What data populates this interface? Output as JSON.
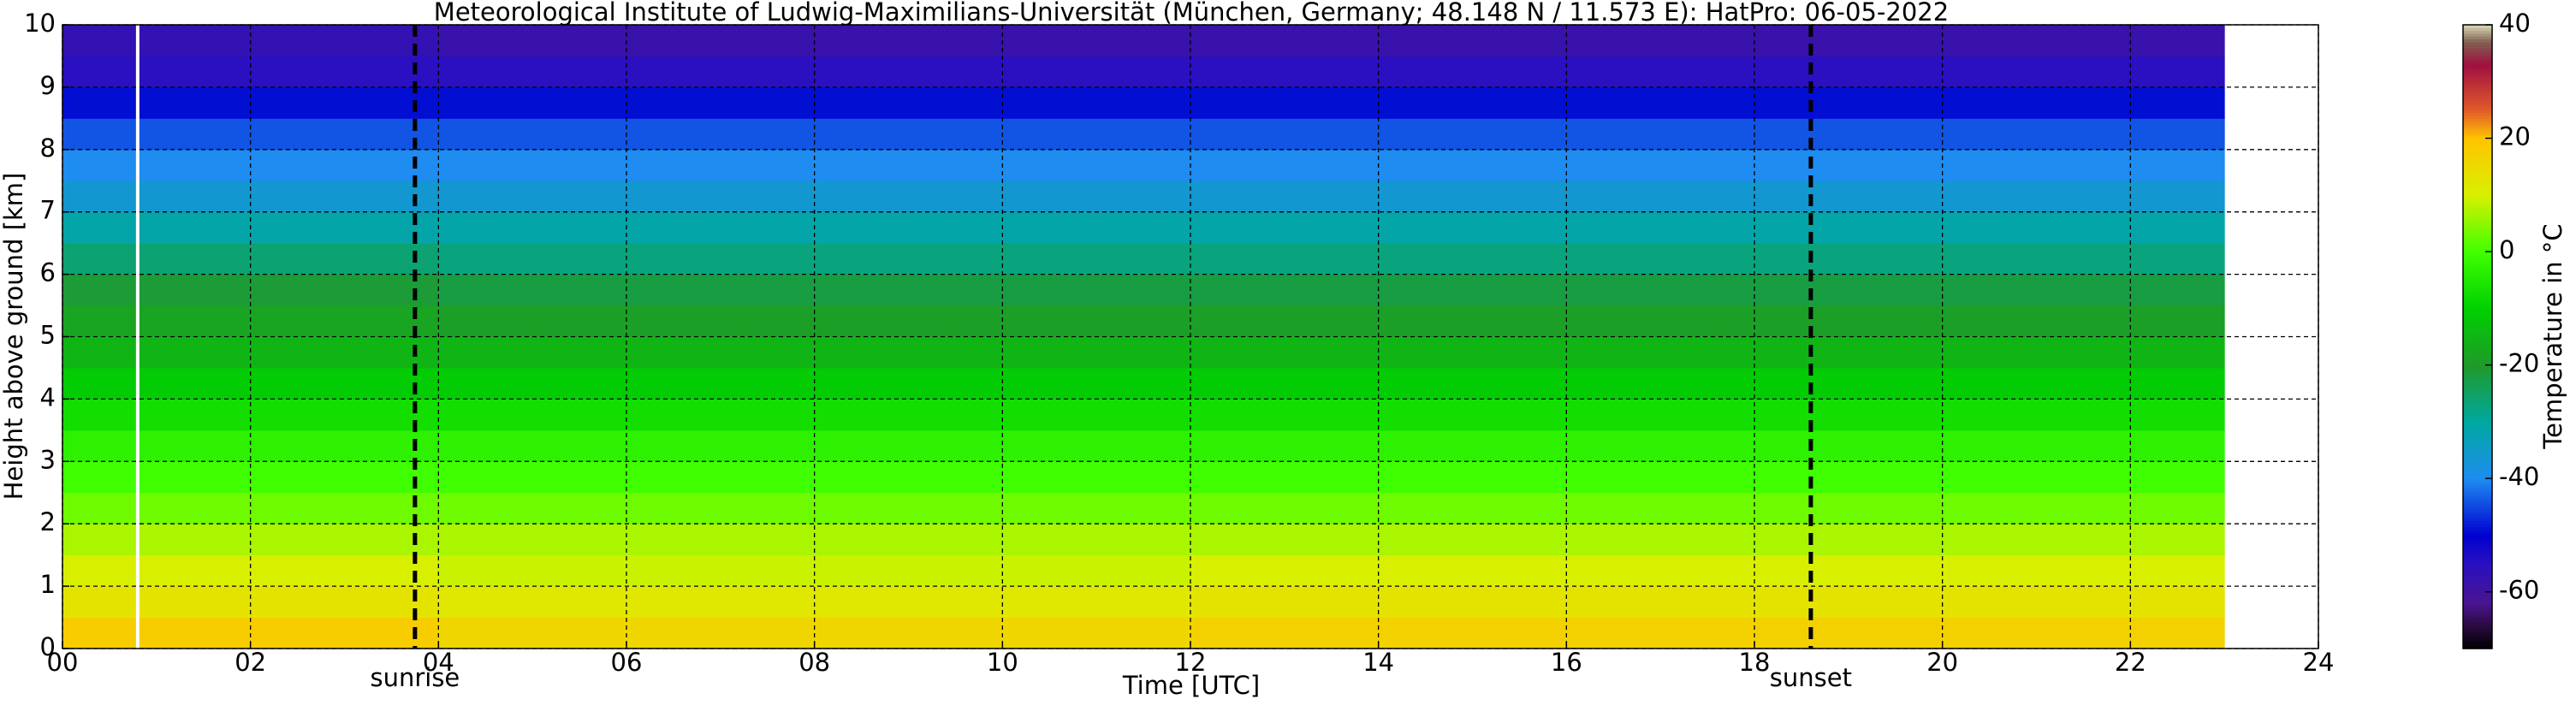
{
  "chart_data": {
    "type": "heatmap",
    "title": "Meteorological Institute of Ludwig-Maximilians-Universität (München, Germany; 48.148 N / 11.573 E):    HatPro: 06-05-2022",
    "x_label": "Time [UTC]",
    "y_label": "Height above ground [km]",
    "colorbar_label": "Temperature in °C",
    "x": [
      0,
      4,
      8,
      12,
      16,
      20,
      23
    ],
    "y": [
      0,
      0.5,
      1,
      1.5,
      2,
      2.5,
      3,
      3.5,
      4,
      4.5,
      5,
      5.5,
      6,
      6.5,
      7,
      7.5,
      8,
      8.5,
      9,
      9.5,
      10
    ],
    "values": [
      [
        18,
        16,
        16,
        17,
        17,
        17
      ],
      [
        13,
        12,
        12,
        13,
        13,
        13
      ],
      [
        10,
        9,
        9,
        10,
        10,
        10
      ],
      [
        7,
        7,
        7,
        7,
        7,
        7
      ],
      [
        3,
        3,
        3,
        3,
        3,
        3
      ],
      [
        0,
        0,
        0,
        0,
        0,
        0
      ],
      [
        -3,
        -3,
        -3,
        -3,
        -3,
        -3
      ],
      [
        -7,
        -7,
        -7,
        -7,
        -7,
        -7
      ],
      [
        -11,
        -11,
        -11,
        -11,
        -11,
        -11
      ],
      [
        -15,
        -15,
        -15,
        -15,
        -15,
        -15
      ],
      [
        -18,
        -19,
        -19,
        -19,
        -19,
        -19
      ],
      [
        -21,
        -22,
        -22,
        -22,
        -22,
        -22
      ],
      [
        -26,
        -27,
        -27,
        -27,
        -27,
        -27
      ],
      [
        -31,
        -31,
        -31,
        -31,
        -31,
        -31
      ],
      [
        -36,
        -36,
        -36,
        -36,
        -36,
        -36
      ],
      [
        -40,
        -40,
        -40,
        -40,
        -40,
        -40
      ],
      [
        -44,
        -44,
        -44,
        -44,
        -44,
        -44
      ],
      [
        -49,
        -49,
        -49,
        -49,
        -49,
        -49
      ],
      [
        -55,
        -55,
        -55,
        -55,
        -55,
        -55
      ],
      [
        -57,
        -58,
        -58,
        -58,
        -58,
        -58
      ]
    ],
    "xlim": [
      0,
      24
    ],
    "ylim": [
      0,
      10
    ],
    "clim": [
      -70,
      40
    ],
    "xticks": [
      {
        "value": 0,
        "label": "00"
      },
      {
        "value": 2,
        "label": "02"
      },
      {
        "value": 4,
        "label": "04"
      },
      {
        "value": 6,
        "label": "06"
      },
      {
        "value": 8,
        "label": "08"
      },
      10,
      12,
      14,
      16,
      18,
      20,
      22,
      24
    ],
    "yticks": [
      0,
      1,
      2,
      3,
      4,
      5,
      6,
      7,
      8,
      9,
      10
    ],
    "cticks": [
      -60,
      -40,
      -20,
      0,
      20,
      40
    ],
    "colorscale": [
      [
        -70,
        "#000000"
      ],
      [
        -66,
        "#2a0a40"
      ],
      [
        -62,
        "#4a1590"
      ],
      [
        -55,
        "#2a10c0"
      ],
      [
        -50,
        "#0000d0"
      ],
      [
        -40,
        "#1e8cf0"
      ],
      [
        -30,
        "#00a8a0"
      ],
      [
        -20,
        "#1f9a2a"
      ],
      [
        -10,
        "#00d000"
      ],
      [
        0,
        "#40ff00"
      ],
      [
        10,
        "#d8f000"
      ],
      [
        20,
        "#ffc400"
      ],
      [
        25,
        "#e05a2a"
      ],
      [
        33,
        "#a01040"
      ],
      [
        37,
        "#806050"
      ],
      [
        40,
        "#d8d8b8"
      ]
    ],
    "missing_x": [
      0.8
    ],
    "events": [
      {
        "x": 3.75,
        "label": "sunrise"
      },
      {
        "x": 18.6,
        "label": "sunset"
      }
    ],
    "grid": true
  }
}
